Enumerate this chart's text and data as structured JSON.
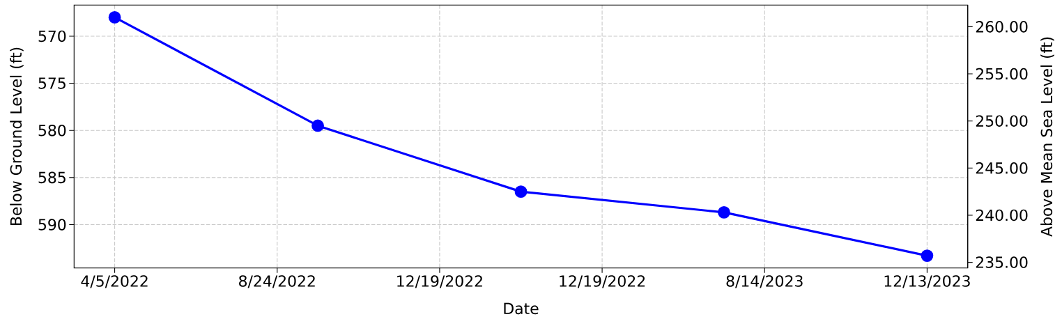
{
  "chart_data": {
    "type": "line",
    "xlabel": "Date",
    "ylabel": "Below Ground Level (ft)",
    "y2label": "Above Mean Sea Level (ft)",
    "categories": [
      "4/5/2022",
      null,
      null,
      null,
      "8/24/2022",
      null,
      null,
      null,
      "12/19/2022",
      null,
      null,
      null,
      "12/19/2022",
      null,
      null,
      null,
      "8/14/2023",
      null,
      null,
      null,
      "12/13/2023"
    ],
    "series": [
      {
        "color": "#0000ff",
        "values": [
          568.0,
          null,
          null,
          null,
          null,
          579.5,
          null,
          null,
          null,
          null,
          586.5,
          null,
          null,
          null,
          null,
          588.7,
          null,
          null,
          null,
          null,
          593.3
        ]
      }
    ],
    "ylim": [
      594.6,
      566.7
    ],
    "yticks": [
      570,
      575,
      580,
      585,
      590
    ],
    "y2lim": [
      234.4,
      262.3
    ],
    "y2ticks": [
      {
        "value": 235,
        "label": "235.00"
      },
      {
        "value": 240,
        "label": "240.00"
      },
      {
        "value": 245,
        "label": "245.00"
      },
      {
        "value": 250,
        "label": "250.00"
      },
      {
        "value": 255,
        "label": "255.00"
      },
      {
        "value": 260,
        "label": "260.00"
      }
    ],
    "grid": true,
    "marker": "circle",
    "line_style": "solid"
  }
}
